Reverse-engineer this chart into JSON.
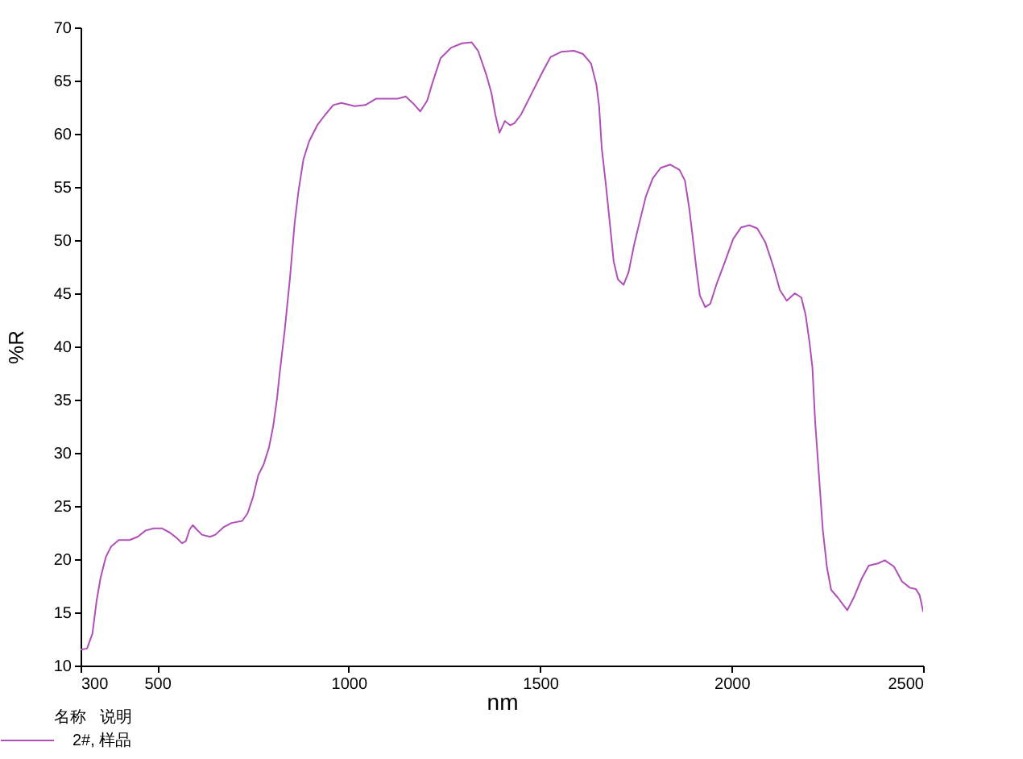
{
  "chart_data": {
    "type": "line",
    "xlabel": "nm",
    "ylabel": "%R",
    "legend_title": "名称   说明",
    "legend": "bottom left",
    "grid": false,
    "line_style": "solid",
    "xlim": [
      300,
      2500
    ],
    "xticks": [
      300,
      500,
      1000,
      1500,
      2000,
      2500
    ],
    "ylim": [
      10,
      70
    ],
    "yticks": [
      10,
      15,
      20,
      25,
      30,
      35,
      40,
      45,
      50,
      55,
      60,
      65,
      70
    ],
    "x": [
      300,
      317,
      331,
      342,
      352,
      366,
      380,
      400,
      428,
      449,
      470,
      491,
      512,
      533,
      551,
      565,
      575,
      585,
      593,
      603,
      617,
      638,
      652,
      673,
      694,
      722,
      736,
      750,
      764,
      778,
      792,
      803,
      813,
      820,
      833,
      847,
      859,
      869,
      882,
      897,
      918,
      939,
      960,
      981,
      1016,
      1044,
      1072,
      1100,
      1128,
      1149,
      1170,
      1187,
      1205,
      1219,
      1240,
      1268,
      1296,
      1321,
      1338,
      1359,
      1373,
      1383,
      1394,
      1408,
      1422,
      1433,
      1450,
      1478,
      1506,
      1527,
      1555,
      1588,
      1612,
      1633,
      1647,
      1654,
      1661,
      1672,
      1682,
      1692,
      1703,
      1718,
      1731,
      1745,
      1759,
      1776,
      1794,
      1815,
      1840,
      1864,
      1878,
      1889,
      1899,
      1909,
      1917,
      1931,
      1944,
      1962,
      1983,
      2004,
      2025,
      2046,
      2067,
      2088,
      2109,
      2126,
      2144,
      2165,
      2182,
      2193,
      2203,
      2211,
      2218,
      2228,
      2238,
      2249,
      2260,
      2277,
      2302,
      2319,
      2340,
      2358,
      2382,
      2400,
      2424,
      2445,
      2466,
      2481,
      2491,
      2500
    ],
    "series": [
      {
        "name": "2#, 样品",
        "color": "#b04fb8",
        "values": [
          11.5,
          11.6,
          13.0,
          16.1,
          18.2,
          20.2,
          21.2,
          21.8,
          21.8,
          22.1,
          22.7,
          22.9,
          22.9,
          22.5,
          22.0,
          21.5,
          21.7,
          22.8,
          23.2,
          22.8,
          22.3,
          22.1,
          22.3,
          23.0,
          23.4,
          23.6,
          24.3,
          25.8,
          27.9,
          28.9,
          30.5,
          32.5,
          35.1,
          37.5,
          41.5,
          46.5,
          51.6,
          54.6,
          57.6,
          59.3,
          60.8,
          61.8,
          62.7,
          62.9,
          62.6,
          62.7,
          63.3,
          63.3,
          63.3,
          63.5,
          62.8,
          62.1,
          63.1,
          64.8,
          67.1,
          68.1,
          68.5,
          68.6,
          67.8,
          65.6,
          63.8,
          61.8,
          60.1,
          61.2,
          60.8,
          61.0,
          61.8,
          63.8,
          65.8,
          67.2,
          67.7,
          67.8,
          67.5,
          66.6,
          64.6,
          62.6,
          58.6,
          55.1,
          51.6,
          48.0,
          46.3,
          45.8,
          47.0,
          49.5,
          51.6,
          54.1,
          55.8,
          56.8,
          57.1,
          56.6,
          55.6,
          53.1,
          50.1,
          47.0,
          44.8,
          43.7,
          44.0,
          46.0,
          48.0,
          50.1,
          51.2,
          51.4,
          51.1,
          49.8,
          47.5,
          45.3,
          44.3,
          45.0,
          44.6,
          43.0,
          40.5,
          38.0,
          33.0,
          27.9,
          22.8,
          19.2,
          17.1,
          16.4,
          15.2,
          16.4,
          18.2,
          19.4,
          19.6,
          19.9,
          19.3,
          17.9,
          17.3,
          17.2,
          16.6,
          15.1
        ]
      }
    ]
  }
}
